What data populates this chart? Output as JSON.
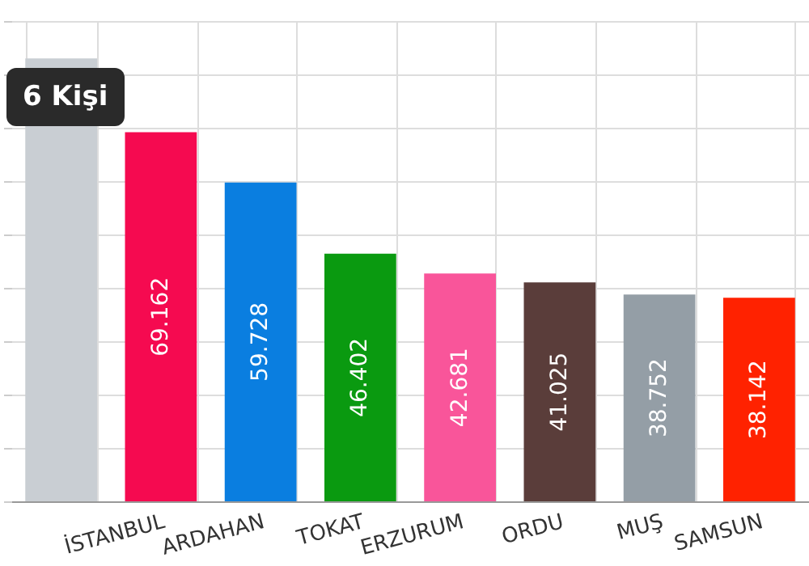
{
  "chart_data": {
    "type": "bar",
    "categories": [
      null,
      "İSTANBUL",
      "ARDAHAN",
      "TOKAT",
      "ERZURUM",
      "ORDU",
      "MUŞ",
      "SAMSUN"
    ],
    "values": [
      83000,
      69162,
      59728,
      46402,
      42681,
      41025,
      38752,
      38142
    ],
    "value_labels": [
      null,
      "69.162",
      "59.728",
      "46.402",
      "42.681",
      "41.025",
      "38.752",
      "38.142"
    ],
    "colors": [
      "#c9ced3",
      "#f50a50",
      "#0a7ee0",
      "#0a9a10",
      "#f9559a",
      "#5a3d3a",
      "#949ea6",
      "#ff2200"
    ],
    "ylim": [
      0,
      90000
    ],
    "yticks": [
      {
        "value": 0,
        "label": null
      },
      {
        "value": 10000,
        "label": null
      },
      {
        "value": 20000,
        "label": null
      },
      {
        "value": 30000,
        "label": null
      },
      {
        "value": 40000,
        "label": null
      },
      {
        "value": 50000,
        "label": null
      },
      {
        "value": 60000,
        "label": null
      },
      {
        "value": 70000,
        "label": null
      },
      {
        "value": 80000,
        "label": null
      },
      {
        "value": 90000,
        "label": null
      }
    ],
    "grid": true,
    "annotations": [
      "6 Kişi"
    ]
  }
}
